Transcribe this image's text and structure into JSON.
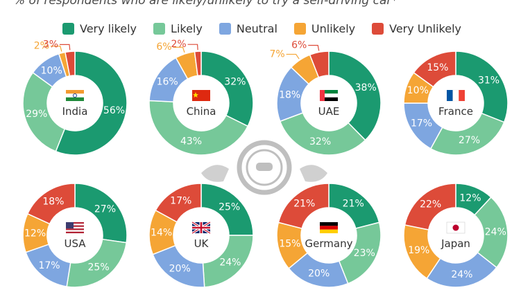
{
  "subtitle": "% of respondents who are likely/unlikely to try a self-driving car*",
  "colors": {
    "very_likely": "#1b9a70",
    "likely": "#76c899",
    "neutral": "#7ea6e0",
    "unlikely": "#f5a535",
    "very_unlikely": "#dd4b39"
  },
  "chart_data": {
    "type": "pie",
    "donut": true,
    "legend_position": "top",
    "series_names": [
      "Very likely",
      "Likely",
      "Neutral",
      "Unlikely",
      "Very Unlikely"
    ],
    "countries": [
      {
        "name": "India",
        "flag": "india-flag",
        "values": [
          56,
          29,
          10,
          2,
          3
        ],
        "labels": [
          "56%",
          "29%",
          "10%",
          "2%",
          "3%"
        ]
      },
      {
        "name": "China",
        "flag": "china-flag",
        "values": [
          32,
          43,
          16,
          6,
          2
        ],
        "labels": [
          "32%",
          "43%",
          "16%",
          "6%",
          "2%"
        ]
      },
      {
        "name": "UAE",
        "flag": "uae-flag",
        "values": [
          38,
          32,
          18,
          7,
          6
        ],
        "labels": [
          "38%",
          "32%",
          "18%",
          "7%",
          "6%"
        ]
      },
      {
        "name": "France",
        "flag": "france-flag",
        "values": [
          31,
          27,
          17,
          10,
          15
        ],
        "labels": [
          "31%",
          "27%",
          "17%",
          "10%",
          "15%"
        ]
      },
      {
        "name": "USA",
        "flag": "usa-flag",
        "values": [
          27,
          25,
          17,
          12,
          18
        ],
        "labels": [
          "27%",
          "25%",
          "17%",
          "12%",
          "18%"
        ]
      },
      {
        "name": "UK",
        "flag": "uk-flag",
        "values": [
          25,
          24,
          20,
          14,
          17
        ],
        "labels": [
          "25%",
          "24%",
          "20%",
          "14%",
          "17%"
        ]
      },
      {
        "name": "Germany",
        "flag": "germany-flag",
        "values": [
          21,
          23,
          20,
          15,
          21
        ],
        "labels": [
          "21%",
          "23%",
          "20%",
          "15%",
          "21%"
        ]
      },
      {
        "name": "Japan",
        "flag": "japan-flag",
        "values": [
          12,
          24,
          24,
          19,
          22
        ],
        "labels": [
          "12%",
          "24%",
          "24%",
          "19%",
          "22%"
        ]
      }
    ]
  }
}
